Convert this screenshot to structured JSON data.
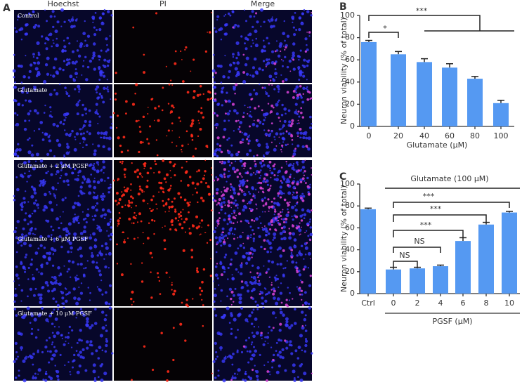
{
  "panel_a": {
    "label": "A",
    "columns": [
      "Hoechst",
      "PI",
      "Merge"
    ],
    "rows": [
      "Control",
      "Glutamate",
      "Glutamate  + 2 μM PGSF",
      "Glutamate  + 6 μM PGSF",
      "Glutamate  + 10 μM PGSF"
    ]
  },
  "chart_data": [
    {
      "type": "bar",
      "panel": "B",
      "ylabel": "Neuron viability (% of total)",
      "xlabel": "Glutamate (μM)",
      "categories": [
        "0",
        "20",
        "40",
        "60",
        "80",
        "100"
      ],
      "values": [
        76,
        65,
        58,
        53,
        43,
        21
      ],
      "errors": [
        1.5,
        2.5,
        3,
        3.5,
        2,
        2.5
      ],
      "color": "#5599f2",
      "ylim": [
        0,
        100
      ],
      "yticks": [
        0,
        20,
        40,
        60,
        80,
        100
      ],
      "annotations": [
        "***",
        "*"
      ]
    },
    {
      "type": "bar",
      "panel": "C",
      "ylabel": "Neuron viability (% of total)",
      "xlabel": "PGSF (μM)",
      "categories": [
        "Ctrl",
        "0",
        "2",
        "4",
        "6",
        "8",
        "10"
      ],
      "values": [
        77,
        22,
        23,
        25,
        48,
        63,
        74
      ],
      "errors": [
        1,
        2,
        1,
        1,
        3,
        2,
        1
      ],
      "color": "#5599f2",
      "ylim": [
        0,
        100
      ],
      "yticks": [
        0,
        20,
        40,
        60,
        80,
        100
      ],
      "annotations": [
        "Glutamate (100 μM)",
        "***",
        "***",
        "***",
        "NS",
        "NS"
      ]
    }
  ]
}
